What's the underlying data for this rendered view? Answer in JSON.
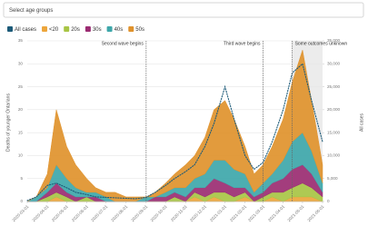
{
  "filter_placeholder": "Select age groups",
  "chart_data": {
    "type": "area",
    "y_label": "Deaths of younger Ontarians",
    "y2_label": "All cases",
    "x": [
      "2020-03-01",
      "2020-03-15",
      "2020-04-01",
      "2020-04-15",
      "2020-05-01",
      "2020-05-15",
      "2020-06-01",
      "2020-06-15",
      "2020-07-01",
      "2020-07-15",
      "2020-08-01",
      "2020-08-15",
      "2020-09-01",
      "2020-09-15",
      "2020-10-01",
      "2020-10-15",
      "2020-11-01",
      "2020-11-15",
      "2020-12-01",
      "2020-12-15",
      "2021-01-01",
      "2021-01-15",
      "2021-02-01",
      "2021-02-15",
      "2021-03-01",
      "2021-03-15",
      "2021-04-01",
      "2021-04-15",
      "2021-05-01",
      "2021-05-15",
      "2021-06-01"
    ],
    "xlim": [
      "2020-03-01",
      "2021-06-01"
    ],
    "xticks": [
      "2020-03-01",
      "2020-04-01",
      "2020-05-01",
      "2020-06-01",
      "2020-07-01",
      "2020-08-01",
      "2020-09-01",
      "2020-10-01",
      "2020-11-01",
      "2020-12-01",
      "2021-01-01",
      "2021-02-01",
      "2021-03-01",
      "2021-04-01",
      "2021-05-01",
      "2021-06-01"
    ],
    "ylim": [
      0,
      35
    ],
    "yticks": [
      0,
      5,
      10,
      15,
      20,
      25,
      30,
      35
    ],
    "y2lim": [
      0,
      35000
    ],
    "y2ticks": [
      0,
      {
        "value": 5000,
        "label": "5,000"
      },
      {
        "value": 10000,
        "label": "10,000"
      },
      {
        "value": 15000,
        "label": "15,000"
      },
      {
        "value": 20000,
        "label": "20,000"
      },
      {
        "value": 25000,
        "label": "25,000"
      },
      {
        "value": 30000,
        "label": "30,000"
      },
      {
        "value": 35000,
        "label": "35,000"
      }
    ],
    "grid": true,
    "stacked": true,
    "series": [
      {
        "name": "All cases",
        "color": "#1d5b79",
        "axis": "y2",
        "style": "dotted",
        "values": [
          200,
          1000,
          3500,
          4000,
          3000,
          2000,
          1500,
          1000,
          900,
          800,
          700,
          600,
          900,
          2000,
          3500,
          5000,
          6500,
          8000,
          12000,
          17000,
          25000,
          18000,
          10000,
          7000,
          8500,
          13000,
          20000,
          28000,
          30000,
          22000,
          13000
        ]
      },
      {
        "name": "<20",
        "color": "#eda63c",
        "values": [
          0,
          0,
          0,
          1,
          0,
          0,
          0,
          0,
          0,
          0,
          0,
          0,
          0,
          0,
          0,
          0,
          0,
          1,
          0,
          1,
          0,
          0,
          1,
          0,
          0,
          1,
          0,
          1,
          1,
          1,
          0
        ]
      },
      {
        "name": "20s",
        "color": "#a8c545",
        "values": [
          0,
          0,
          1,
          1,
          1,
          0,
          1,
          0,
          0,
          0,
          0,
          0,
          0,
          0,
          0,
          1,
          0,
          1,
          1,
          1,
          2,
          1,
          1,
          0,
          1,
          1,
          2,
          2,
          3,
          2,
          1
        ]
      },
      {
        "name": "30s",
        "color": "#9b2c72",
        "values": [
          0,
          0,
          1,
          2,
          1,
          1,
          0,
          1,
          0,
          0,
          0,
          0,
          0,
          1,
          1,
          1,
          1,
          1,
          2,
          3,
          2,
          2,
          1,
          1,
          1,
          2,
          3,
          4,
          4,
          3,
          1
        ]
      },
      {
        "name": "40s",
        "color": "#3ea7aa",
        "values": [
          0,
          1,
          1,
          4,
          3,
          2,
          1,
          1,
          1,
          0,
          0,
          0,
          1,
          0,
          1,
          1,
          2,
          2,
          3,
          4,
          5,
          4,
          3,
          1,
          2,
          2,
          4,
          6,
          7,
          5,
          2
        ]
      },
      {
        "name": "50s",
        "color": "#e0922c",
        "values": [
          0,
          0,
          3,
          12,
          7,
          5,
          3,
          1,
          1,
          2,
          1,
          1,
          0,
          1,
          2,
          3,
          5,
          5,
          8,
          11,
          13,
          11,
          6,
          4,
          4,
          6,
          9,
          13,
          18,
          11,
          4
        ]
      }
    ],
    "annotations": [
      {
        "x": "2020-09-01",
        "label": "Second wave begins"
      },
      {
        "x": "2021-03-01",
        "label": "Third wave begins"
      },
      {
        "x": "2021-04-15",
        "label": "Some outcomes unknown",
        "shade_to": "2021-06-01"
      }
    ]
  }
}
